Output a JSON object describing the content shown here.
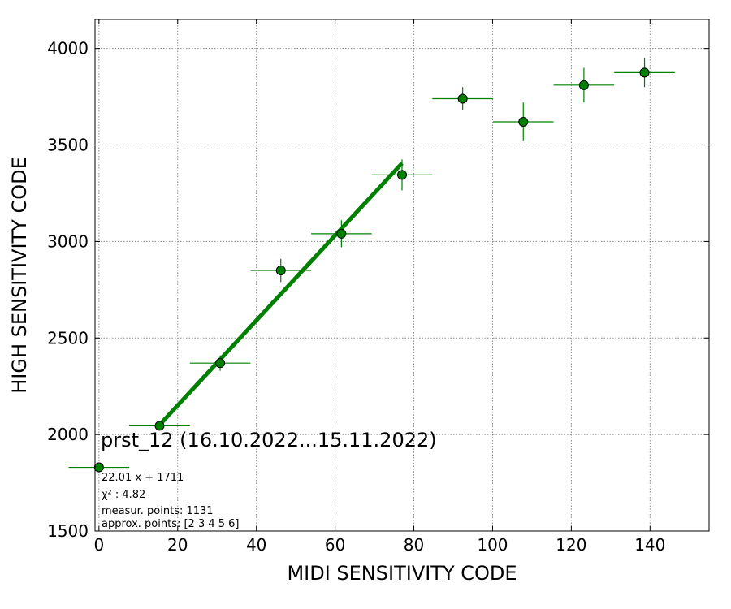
{
  "chart_data": {
    "type": "scatter",
    "title": "",
    "xlabel": "MIDI SENSITIVITY CODE",
    "ylabel": "HIGH SENSITIVITY CODE",
    "xlim": [
      -1,
      155
    ],
    "ylim": [
      1500,
      4150
    ],
    "x_ticks": [
      0,
      20,
      40,
      60,
      80,
      100,
      120,
      140
    ],
    "y_ticks": [
      1500,
      2000,
      2500,
      3000,
      3500,
      4000
    ],
    "grid": true,
    "color": "#008000",
    "points": [
      {
        "x": 0,
        "y": 1830,
        "xerr": 7.7,
        "yerr": 15
      },
      {
        "x": 15.4,
        "y": 2045,
        "xerr": 7.7,
        "yerr": 15
      },
      {
        "x": 30.8,
        "y": 2370,
        "xerr": 7.7,
        "yerr": 40
      },
      {
        "x": 46.2,
        "y": 2850,
        "xerr": 7.7,
        "yerr": 60
      },
      {
        "x": 61.6,
        "y": 3040,
        "xerr": 7.7,
        "yerr": 70
      },
      {
        "x": 77,
        "y": 3345,
        "xerr": 7.7,
        "yerr": 80
      },
      {
        "x": 92.4,
        "y": 3740,
        "xerr": 7.7,
        "yerr": 60
      },
      {
        "x": 107.8,
        "y": 3620,
        "xerr": 7.7,
        "yerr": 100
      },
      {
        "x": 123.2,
        "y": 3810,
        "xerr": 7.7,
        "yerr": 90
      },
      {
        "x": 138.6,
        "y": 3875,
        "xerr": 7.7,
        "yerr": 75
      }
    ],
    "fit_line": {
      "slope": 22.01,
      "intercept": 1711,
      "x_range": [
        15.4,
        77
      ]
    },
    "annotations": {
      "title_text": "prst_12 (16.10.2022...15.11.2022)",
      "equation": "22.01 x + 1711",
      "chi2_label": "χ² : 4.82",
      "measur_points": "measur. points: 1131",
      "approx_points": "approx. points: [2 3 4 5 6]"
    }
  }
}
